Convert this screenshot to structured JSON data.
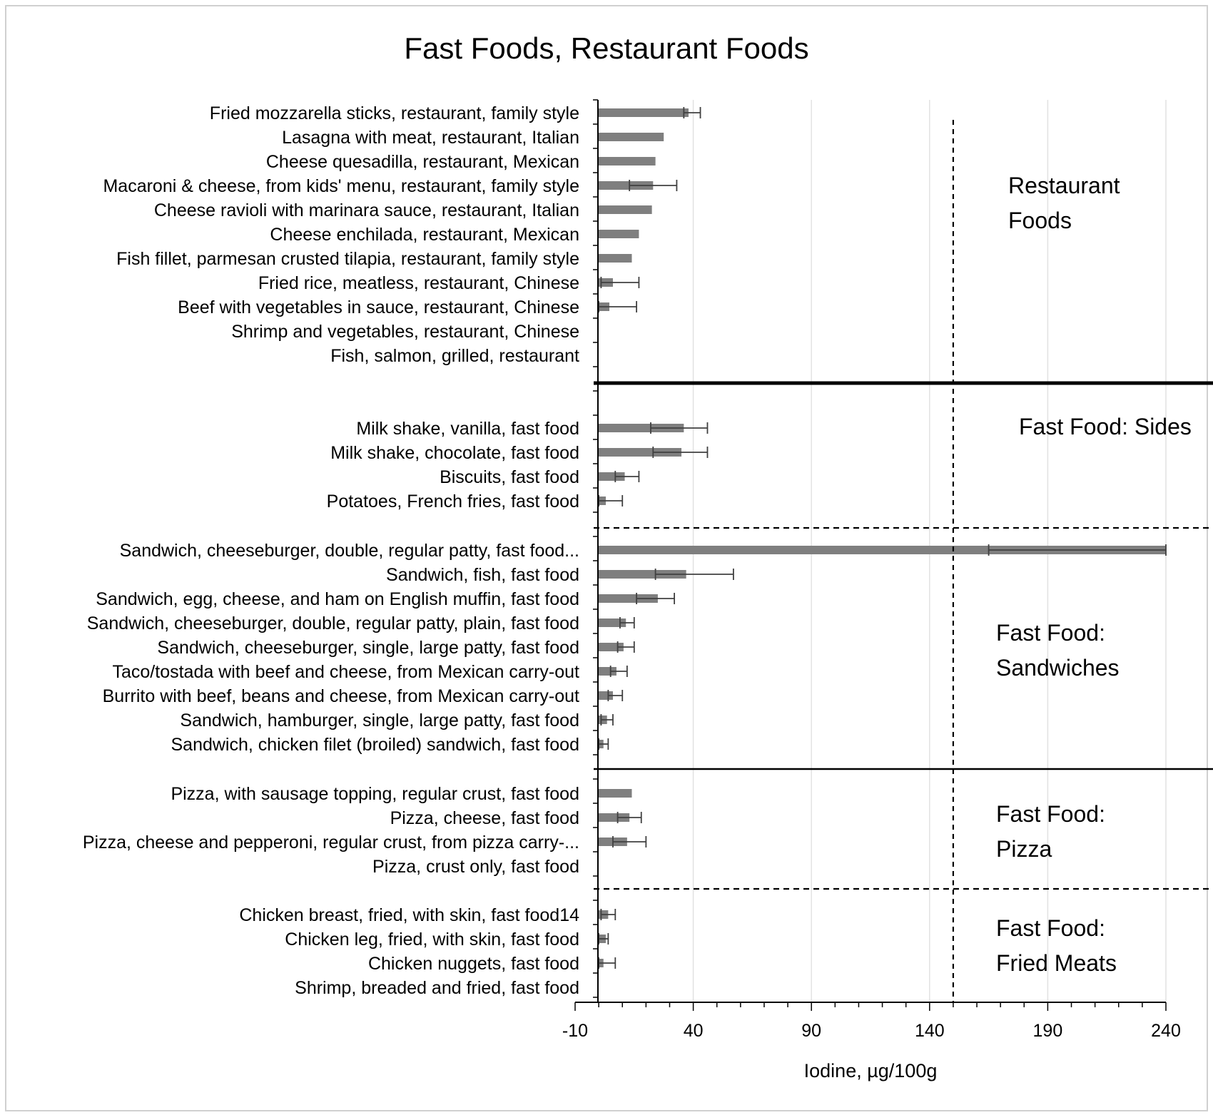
{
  "chart_data": {
    "type": "bar",
    "orientation": "horizontal",
    "title": "Fast Foods, Restaurant Foods",
    "xlabel": "Iodine, µg/100g",
    "xlim": [
      -10,
      240
    ],
    "xticks": [
      -10,
      40,
      90,
      140,
      190,
      240
    ],
    "reference_line_x": 150,
    "grid": true,
    "bar_color": "#7f7f7f",
    "categories": [
      "Fried mozzarella sticks, restaurant, family style",
      "Lasagna with meat, restaurant, Italian",
      "Cheese quesadilla, restaurant, Mexican",
      "Macaroni & cheese, from kids' menu, restaurant, family style",
      "Cheese ravioli with marinara sauce, restaurant, Italian",
      "Cheese enchilada, restaurant, Mexican",
      "Fish fillet, parmesan crusted tilapia, restaurant, family style",
      "Fried rice, meatless, restaurant, Chinese",
      "Beef with vegetables in sauce, restaurant, Chinese",
      "Shrimp and vegetables, restaurant, Chinese",
      "Fish, salmon, grilled, restaurant",
      "Milk shake, vanilla, fast food",
      "Milk shake, chocolate, fast food",
      "Biscuits, fast food",
      "Potatoes, French fries, fast food",
      "Sandwich, cheeseburger, double, regular patty, fast food...",
      "Sandwich, fish, fast food",
      "Sandwich, egg, cheese, and ham on English muffin, fast food",
      "Sandwich, cheeseburger, double, regular patty, plain, fast food",
      "Sandwich, cheeseburger, single, large patty, fast food",
      "Taco/tostada with beef and cheese, from Mexican carry-out",
      "Burrito with beef, beans and cheese, from Mexican carry-out",
      "Sandwich, hamburger, single, large patty, fast food",
      "Sandwich, chicken filet (broiled) sandwich, fast food",
      "Pizza, with sausage topping, regular crust, fast food",
      "Pizza, cheese, fast food",
      "Pizza, cheese and pepperoni, regular crust, from pizza carry-...",
      "Pizza, crust only, fast food",
      "Chicken breast, fried, with skin, fast food14",
      "Chicken leg, fried, with skin, fast food",
      "Chicken nuggets, fast food",
      "Shrimp, breaded and fried, fast food"
    ],
    "values": [
      38,
      27.5,
      24,
      23,
      22.5,
      17,
      14,
      6,
      4.5,
      0,
      0,
      36,
      35,
      11,
      3,
      240,
      37,
      25,
      11.5,
      10.5,
      7.5,
      6,
      3.5,
      2,
      14,
      13,
      12,
      0,
      4,
      3,
      2,
      0
    ],
    "error_low": [
      36,
      null,
      null,
      13,
      null,
      null,
      null,
      1,
      0,
      null,
      null,
      22,
      23,
      7,
      0,
      165,
      24,
      16,
      9,
      8,
      5,
      4,
      1,
      0,
      null,
      8,
      6,
      null,
      1,
      0,
      0,
      null
    ],
    "error_high": [
      43,
      null,
      null,
      33,
      null,
      null,
      null,
      17,
      16,
      null,
      null,
      46,
      46,
      17,
      10,
      240,
      57,
      32,
      15,
      15,
      12,
      10,
      6,
      4,
      null,
      18,
      20,
      null,
      7,
      4,
      7,
      null
    ],
    "groups": [
      {
        "name": "Restaurant\nFoods",
        "start": 0,
        "end": 10
      },
      {
        "name": "Fast Food: Sides",
        "start": 11,
        "end": 14
      },
      {
        "name": "Fast Food:\nSandwiches",
        "start": 15,
        "end": 23
      },
      {
        "name": "Fast Food:\nPizza",
        "start": 24,
        "end": 27
      },
      {
        "name": "Fast Food:\nFried Meats",
        "start": 28,
        "end": 31
      }
    ]
  }
}
